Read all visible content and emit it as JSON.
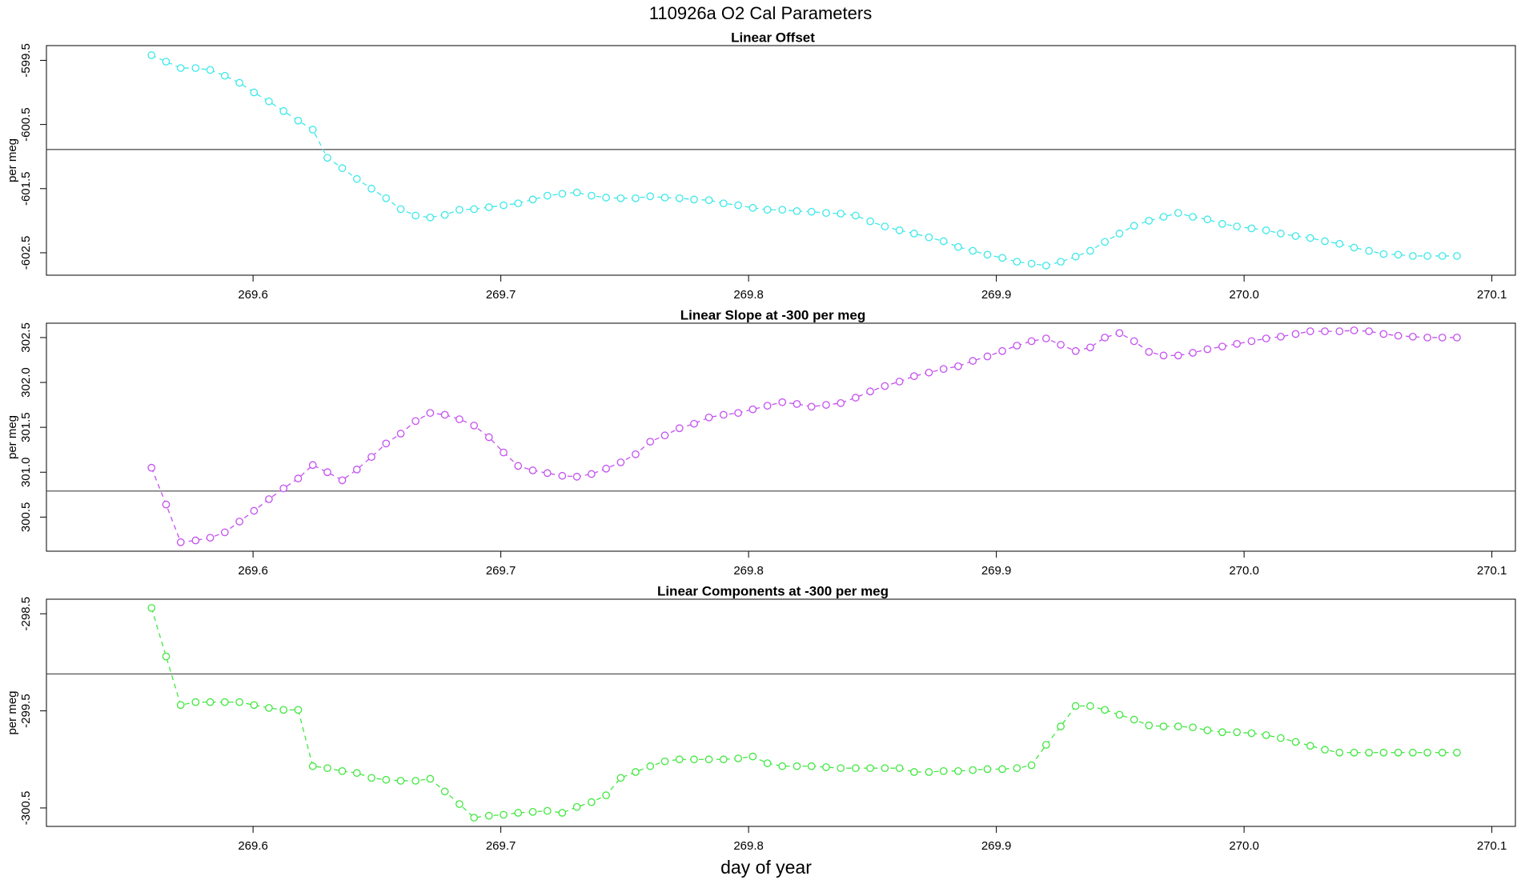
{
  "title": "110926a   O2 Cal Parameters",
  "chart_data": [
    {
      "type": "line",
      "title": "Linear Offset",
      "ylabel": "per meg",
      "xlim": [
        269.5166,
        270.1095
      ],
      "ylim": [
        -602.85,
        -599.27
      ],
      "xticks": [
        269.6,
        269.7,
        269.8,
        269.9,
        {
          "value": 270,
          "label": "270.0"
        },
        270.1
      ],
      "yticks": [
        -599.5,
        -600.5,
        -601.5,
        -602.5
      ],
      "hline": -600.89,
      "x": [
        269.559,
        269.5649,
        269.5708,
        269.5768,
        269.5827,
        269.5886,
        269.5945,
        269.6004,
        269.6064,
        269.6123,
        269.6182,
        269.6241,
        269.63,
        269.636,
        269.6419,
        269.6478,
        269.6537,
        269.6596,
        269.6656,
        269.6715,
        269.6774,
        269.6833,
        269.6892,
        269.6952,
        269.7011,
        269.707,
        269.7129,
        269.7188,
        269.7248,
        269.7307,
        269.7366,
        269.7425,
        269.7484,
        269.7544,
        269.7603,
        269.7662,
        269.7721,
        269.778,
        269.784,
        269.7899,
        269.7958,
        269.8017,
        269.8076,
        269.8136,
        269.8195,
        269.8254,
        269.8313,
        269.8372,
        269.8432,
        269.8491,
        269.855,
        269.8609,
        269.8668,
        269.8728,
        269.8787,
        269.8846,
        269.8905,
        269.8964,
        269.9024,
        269.9083,
        269.9142,
        269.9201,
        269.926,
        269.932,
        269.9379,
        269.9438,
        269.9497,
        269.9556,
        269.9616,
        269.9675,
        269.9734,
        269.9793,
        269.9852,
        269.9912,
        269.9971,
        270.003,
        270.0089,
        270.0148,
        270.0208,
        270.0267,
        270.0326,
        270.0385,
        270.0444,
        270.0504,
        270.0563,
        270.0622,
        270.0681,
        270.074,
        270.08,
        270.0859
      ],
      "series": [
        {
          "color": "#3ee8e8",
          "values": [
            -599.42,
            -599.52,
            -599.62,
            -599.62,
            -599.65,
            -599.74,
            -599.85,
            -600.0,
            -600.14,
            -600.29,
            -600.44,
            -600.58,
            -601.02,
            -601.18,
            -601.35,
            -601.5,
            -601.65,
            -601.82,
            -601.92,
            -601.95,
            -601.91,
            -601.83,
            -601.82,
            -601.79,
            -601.76,
            -601.73,
            -601.67,
            -601.61,
            -601.58,
            -601.56,
            -601.61,
            -601.64,
            -601.65,
            -601.65,
            -601.62,
            -601.64,
            -601.65,
            -601.67,
            -601.68,
            -601.73,
            -601.76,
            -601.8,
            -601.83,
            -601.83,
            -601.85,
            -601.86,
            -601.88,
            -601.89,
            -601.92,
            -602.01,
            -602.09,
            -602.15,
            -602.2,
            -602.26,
            -602.32,
            -602.41,
            -602.47,
            -602.53,
            -602.58,
            -602.64,
            -602.67,
            -602.7,
            -602.64,
            -602.56,
            -602.47,
            -602.33,
            -602.2,
            -602.08,
            -602.0,
            -601.94,
            -601.88,
            -601.94,
            -601.98,
            -602.05,
            -602.09,
            -602.12,
            -602.15,
            -602.2,
            -602.24,
            -602.27,
            -602.32,
            -602.36,
            -602.42,
            -602.47,
            -602.52,
            -602.53,
            -602.55,
            -602.55,
            -602.55,
            -602.55
          ]
        }
      ]
    },
    {
      "type": "line",
      "title": "Linear Slope at -300 per meg",
      "ylabel": "per meg",
      "xlim": [
        269.5166,
        270.1095
      ],
      "ylim": [
        300.12,
        302.66
      ],
      "xticks": [
        269.6,
        269.7,
        269.8,
        269.9,
        {
          "value": 270,
          "label": "270.0"
        },
        270.1
      ],
      "yticks": [
        302.5,
        {
          "value": 302,
          "label": "302.0"
        },
        301.5,
        {
          "value": 301,
          "label": "301.0"
        },
        300.5
      ],
      "hline": 300.79,
      "x": [
        269.559,
        269.5649,
        269.5708,
        269.5768,
        269.5827,
        269.5886,
        269.5945,
        269.6004,
        269.6064,
        269.6123,
        269.6182,
        269.6241,
        269.63,
        269.636,
        269.6419,
        269.6478,
        269.6537,
        269.6596,
        269.6656,
        269.6715,
        269.6774,
        269.6833,
        269.6892,
        269.6952,
        269.7011,
        269.707,
        269.7129,
        269.7188,
        269.7248,
        269.7307,
        269.7366,
        269.7425,
        269.7484,
        269.7544,
        269.7603,
        269.7662,
        269.7721,
        269.778,
        269.784,
        269.7899,
        269.7958,
        269.8017,
        269.8076,
        269.8136,
        269.8195,
        269.8254,
        269.8313,
        269.8372,
        269.8432,
        269.8491,
        269.855,
        269.8609,
        269.8668,
        269.8728,
        269.8787,
        269.8846,
        269.8905,
        269.8964,
        269.9024,
        269.9083,
        269.9142,
        269.9201,
        269.926,
        269.932,
        269.9379,
        269.9438,
        269.9497,
        269.9556,
        269.9616,
        269.9675,
        269.9734,
        269.9793,
        269.9852,
        269.9912,
        269.9971,
        270.003,
        270.0089,
        270.0148,
        270.0208,
        270.0267,
        270.0326,
        270.0385,
        270.0444,
        270.0504,
        270.0563,
        270.0622,
        270.0681,
        270.074,
        270.08,
        270.0859
      ],
      "series": [
        {
          "color": "#c450f0",
          "values": [
            301.05,
            300.64,
            300.22,
            300.24,
            300.27,
            300.33,
            300.45,
            300.57,
            300.7,
            300.82,
            300.93,
            301.08,
            301.0,
            300.91,
            301.03,
            301.17,
            301.32,
            301.43,
            301.57,
            301.66,
            301.64,
            301.59,
            301.52,
            301.39,
            301.22,
            301.07,
            301.02,
            300.99,
            300.96,
            300.95,
            300.98,
            301.04,
            301.11,
            301.2,
            301.34,
            301.41,
            301.49,
            301.54,
            301.61,
            301.64,
            301.66,
            301.7,
            301.74,
            301.78,
            301.76,
            301.73,
            301.75,
            301.77,
            301.83,
            301.9,
            301.96,
            302.01,
            302.07,
            302.11,
            302.15,
            302.18,
            302.24,
            302.29,
            302.35,
            302.41,
            302.46,
            302.49,
            302.42,
            302.35,
            302.39,
            302.5,
            302.55,
            302.46,
            302.34,
            302.3,
            302.3,
            302.33,
            302.37,
            302.4,
            302.43,
            302.46,
            302.49,
            302.51,
            302.54,
            302.57,
            302.57,
            302.57,
            302.58,
            302.57,
            302.54,
            302.52,
            302.51,
            302.5,
            302.5,
            302.5
          ]
        }
      ]
    },
    {
      "type": "line",
      "title": "Linear Components at -300 per meg",
      "ylabel": "per meg",
      "xlabel": "day of year",
      "xlim": [
        269.5166,
        270.1095
      ],
      "ylim": [
        -300.69,
        -298.35
      ],
      "xticks": [
        269.6,
        269.7,
        269.8,
        269.9,
        {
          "value": 270,
          "label": "270.0"
        },
        270.1
      ],
      "yticks": [
        -298.5,
        -299.5,
        -300.5
      ],
      "hline": -299.12,
      "x": [
        269.559,
        269.5649,
        269.5708,
        269.5768,
        269.5827,
        269.5886,
        269.5945,
        269.6004,
        269.6064,
        269.6123,
        269.6182,
        269.6241,
        269.63,
        269.636,
        269.6419,
        269.6478,
        269.6537,
        269.6596,
        269.6656,
        269.6715,
        269.6774,
        269.6833,
        269.6892,
        269.6952,
        269.7011,
        269.707,
        269.7129,
        269.7188,
        269.7248,
        269.7307,
        269.7366,
        269.7425,
        269.7484,
        269.7544,
        269.7603,
        269.7662,
        269.7721,
        269.778,
        269.784,
        269.7899,
        269.7958,
        269.8017,
        269.8076,
        269.8136,
        269.8195,
        269.8254,
        269.8313,
        269.8372,
        269.8432,
        269.8491,
        269.855,
        269.8609,
        269.8668,
        269.8728,
        269.8787,
        269.8846,
        269.8905,
        269.8964,
        269.9024,
        269.9083,
        269.9142,
        269.9201,
        269.926,
        269.932,
        269.9379,
        269.9438,
        269.9497,
        269.9556,
        269.9616,
        269.9675,
        269.9734,
        269.9793,
        269.9852,
        269.9912,
        269.9971,
        270.003,
        270.0089,
        270.0148,
        270.0208,
        270.0267,
        270.0326,
        270.0385,
        270.0444,
        270.0504,
        270.0563,
        270.0622,
        270.0681,
        270.074,
        270.08,
        270.0859
      ],
      "series": [
        {
          "color": "#40e840",
          "values": [
            -298.44,
            -298.94,
            -299.44,
            -299.41,
            -299.41,
            -299.41,
            -299.41,
            -299.44,
            -299.47,
            -299.49,
            -299.49,
            -300.07,
            -300.09,
            -300.12,
            -300.14,
            -300.19,
            -300.21,
            -300.22,
            -300.22,
            -300.2,
            -300.33,
            -300.46,
            -300.6,
            -300.58,
            -300.57,
            -300.55,
            -300.54,
            -300.53,
            -300.55,
            -300.49,
            -300.44,
            -300.37,
            -300.19,
            -300.13,
            -300.07,
            -300.02,
            -300.0,
            -300.0,
            -300.0,
            -300.0,
            -299.99,
            -299.97,
            -300.04,
            -300.07,
            -300.07,
            -300.07,
            -300.08,
            -300.09,
            -300.09,
            -300.09,
            -300.09,
            -300.09,
            -300.13,
            -300.13,
            -300.12,
            -300.12,
            -300.11,
            -300.1,
            -300.1,
            -300.09,
            -300.06,
            -299.85,
            -299.66,
            -299.45,
            -299.45,
            -299.49,
            -299.54,
            -299.59,
            -299.65,
            -299.66,
            -299.66,
            -299.67,
            -299.7,
            -299.72,
            -299.72,
            -299.73,
            -299.75,
            -299.78,
            -299.82,
            -299.86,
            -299.9,
            -299.93,
            -299.93,
            -299.93,
            -299.93,
            -299.93,
            -299.93,
            -299.93,
            -299.93,
            -299.93
          ]
        }
      ]
    }
  ]
}
